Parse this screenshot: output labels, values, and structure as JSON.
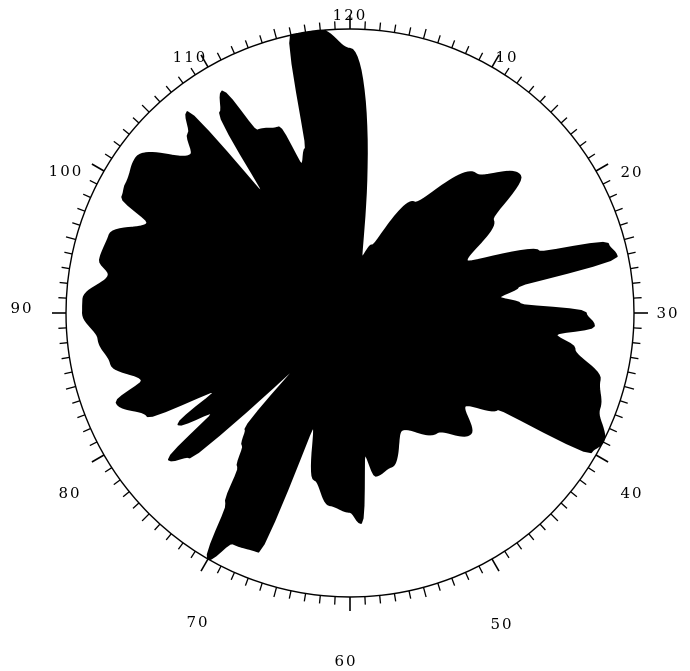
{
  "dial": {
    "divisions": 120,
    "ticks_per_label": 10,
    "labels": [
      "120",
      "10",
      "20",
      "30",
      "40",
      "50",
      "60",
      "70",
      "80",
      "90",
      "100",
      "110"
    ]
  },
  "pattern": {
    "fill_color": "#000000",
    "background": "#ffffff",
    "radial_profile": [
      [
        0,
        0.93
      ],
      [
        4,
        0.2
      ],
      [
        6,
        0.25
      ],
      [
        10,
        0.45
      ],
      [
        14,
        0.66
      ],
      [
        17,
        0.77
      ],
      [
        19,
        0.6
      ],
      [
        22,
        0.45
      ],
      [
        24,
        0.7
      ],
      [
        25,
        0.94
      ],
      [
        26,
        0.96
      ],
      [
        27,
        0.6
      ],
      [
        28,
        0.53
      ],
      [
        29,
        0.6
      ],
      [
        30,
        0.83
      ],
      [
        31,
        0.86
      ],
      [
        32,
        0.73
      ],
      [
        33,
        0.8
      ],
      [
        35,
        0.91
      ],
      [
        37,
        0.94
      ],
      [
        39,
        1.0
      ],
      [
        40,
        0.98
      ],
      [
        41,
        0.62
      ],
      [
        43,
        0.52
      ],
      [
        45,
        0.6
      ],
      [
        48,
        0.52
      ],
      [
        52,
        0.45
      ],
      [
        55,
        0.56
      ],
      [
        57,
        0.58
      ],
      [
        58,
        0.5
      ],
      [
        59,
        0.74
      ],
      [
        60,
        0.7
      ],
      [
        62,
        0.68
      ],
      [
        64,
        0.6
      ],
      [
        66,
        0.42
      ],
      [
        67,
        0.9
      ],
      [
        69,
        0.91
      ],
      [
        70,
        1.0
      ],
      [
        71,
        0.8
      ],
      [
        72,
        0.67
      ],
      [
        73,
        0.6
      ],
      [
        74,
        0.55
      ],
      [
        75,
        0.25
      ],
      [
        76,
        0.76
      ],
      [
        77,
        0.82
      ],
      [
        78,
        0.6
      ],
      [
        79,
        0.72
      ],
      [
        80,
        0.55
      ],
      [
        81,
        0.8
      ],
      [
        83,
        0.88
      ],
      [
        84,
        0.77
      ],
      [
        86,
        0.86
      ],
      [
        88,
        0.89
      ],
      [
        90,
        0.94
      ],
      [
        91,
        0.94
      ],
      [
        93,
        0.86
      ],
      [
        94,
        0.9
      ],
      [
        96,
        0.89
      ],
      [
        98,
        0.78
      ],
      [
        99,
        0.9
      ],
      [
        100,
        0.91
      ],
      [
        102,
        0.93
      ],
      [
        105,
        0.79
      ],
      [
        106,
        0.85
      ],
      [
        107,
        0.91
      ],
      [
        108,
        0.52
      ],
      [
        109,
        0.84
      ],
      [
        110,
        0.9
      ],
      [
        111,
        0.72
      ],
      [
        113,
        0.7
      ],
      [
        114,
        0.55
      ],
      [
        115,
        0.6
      ],
      [
        116,
        1.0
      ],
      [
        118,
        1.0
      ],
      [
        120,
        0.93
      ]
    ]
  }
}
